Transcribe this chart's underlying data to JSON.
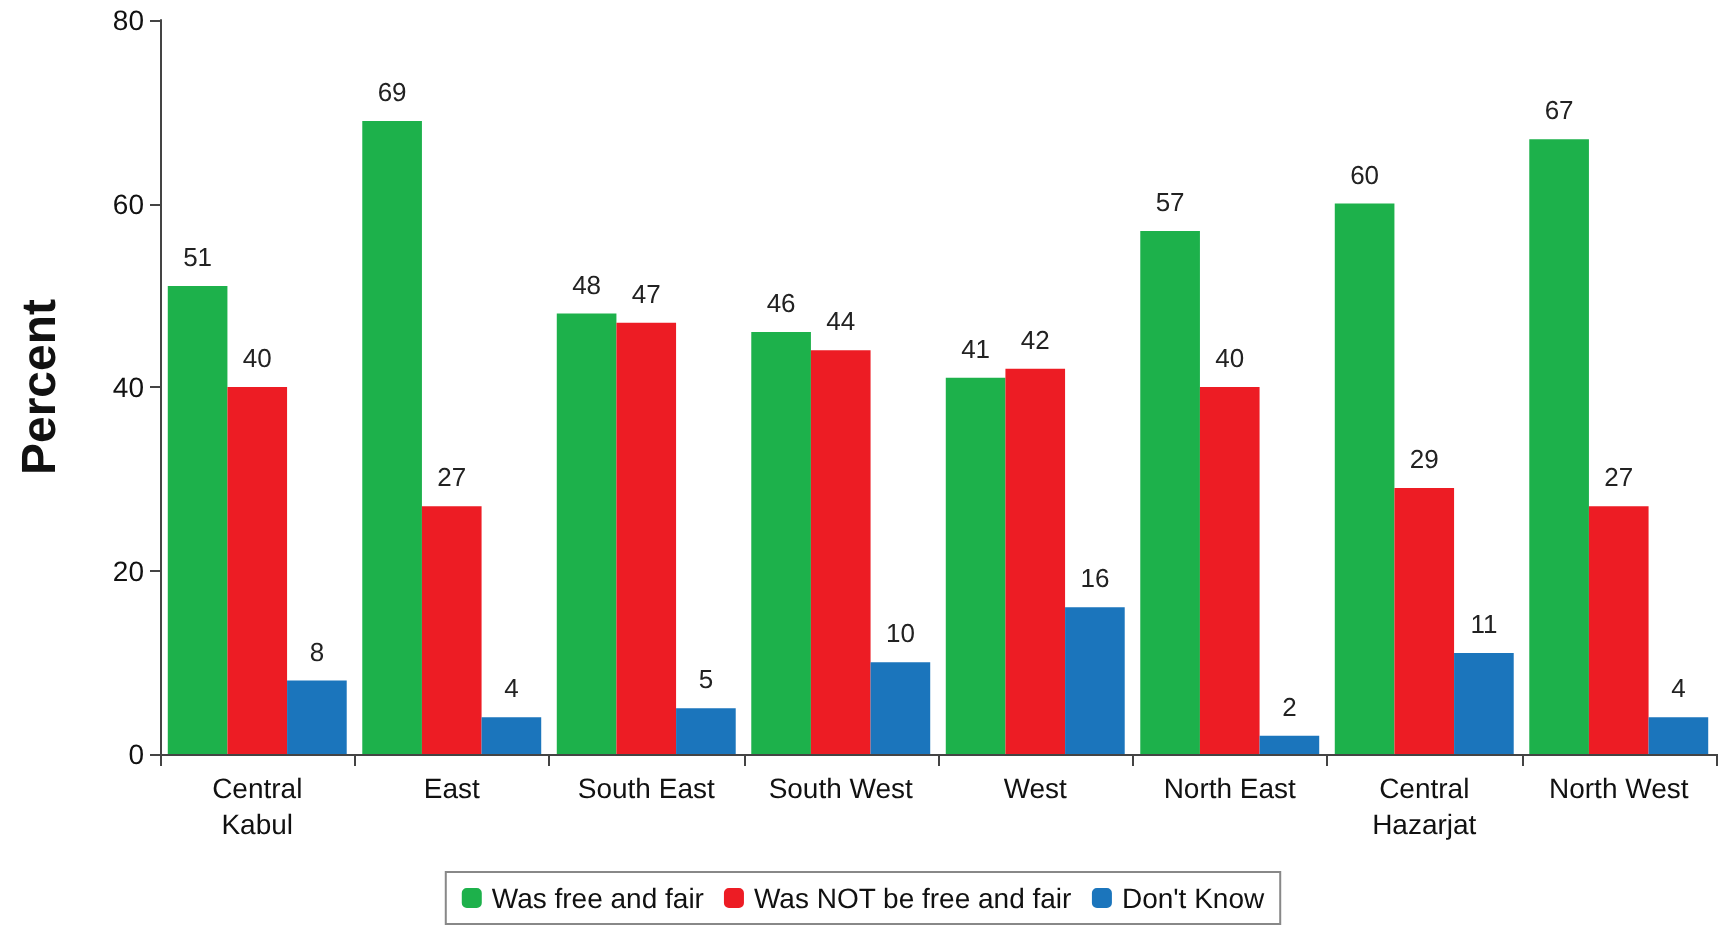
{
  "chart_data": {
    "type": "bar",
    "ylabel": "Percent",
    "categories": [
      "Central\nKabul",
      "East",
      "South East",
      "South West",
      "West",
      "North East",
      "Central\nHazarjat",
      "North West"
    ],
    "series": [
      {
        "name": "Was free and fair",
        "color": "#1db14b",
        "values": [
          51,
          69,
          48,
          46,
          41,
          57,
          60,
          67
        ]
      },
      {
        "name": "Was NOT be free and fair",
        "color": "#ed1c24",
        "values": [
          40,
          27,
          47,
          44,
          42,
          40,
          29,
          27
        ]
      },
      {
        "name": "Don't Know",
        "color": "#1b75bc",
        "values": [
          8,
          4,
          5,
          10,
          16,
          2,
          11,
          4
        ]
      }
    ],
    "ylim": [
      0,
      80
    ],
    "yticks": [
      0,
      20,
      40,
      60,
      80
    ],
    "grid": false,
    "legend": "bottom",
    "data_labels": true
  }
}
